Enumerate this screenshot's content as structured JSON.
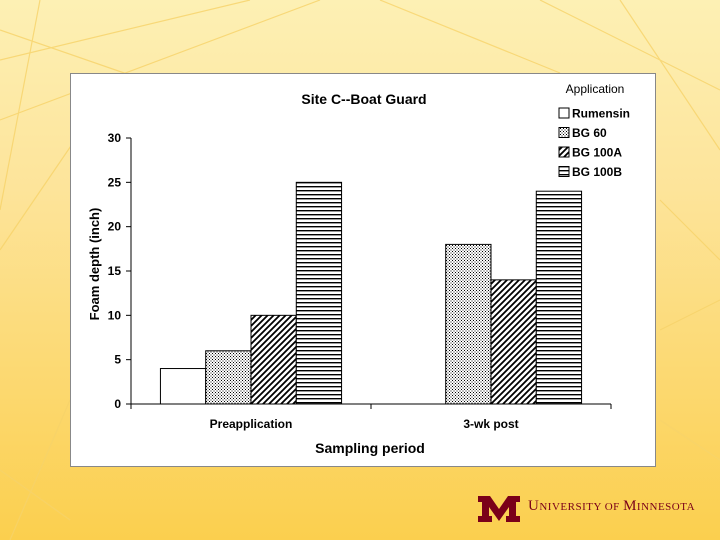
{
  "brand": {
    "name": "University of Minnesota",
    "color": "#7a0019"
  },
  "chart_data": {
    "type": "bar",
    "title": "Site C--Boat Guard",
    "xlabel": "Sampling period",
    "ylabel": "Foam depth (inch)",
    "ylim": [
      0,
      30
    ],
    "yticks": [
      0,
      5,
      10,
      15,
      20,
      25,
      30
    ],
    "categories": [
      "Preapplication",
      "3-wk post"
    ],
    "legend_title": "Application",
    "legend_position": "top-right",
    "grid": false,
    "series": [
      {
        "name": "Rumensin",
        "values": [
          4,
          0
        ],
        "pattern": "solid-white"
      },
      {
        "name": "BG 60",
        "values": [
          6,
          18
        ],
        "pattern": "dots"
      },
      {
        "name": "BG 100A",
        "values": [
          10,
          14
        ],
        "pattern": "diagonal"
      },
      {
        "name": "BG 100B",
        "values": [
          25,
          24
        ],
        "pattern": "horizontal"
      }
    ]
  }
}
